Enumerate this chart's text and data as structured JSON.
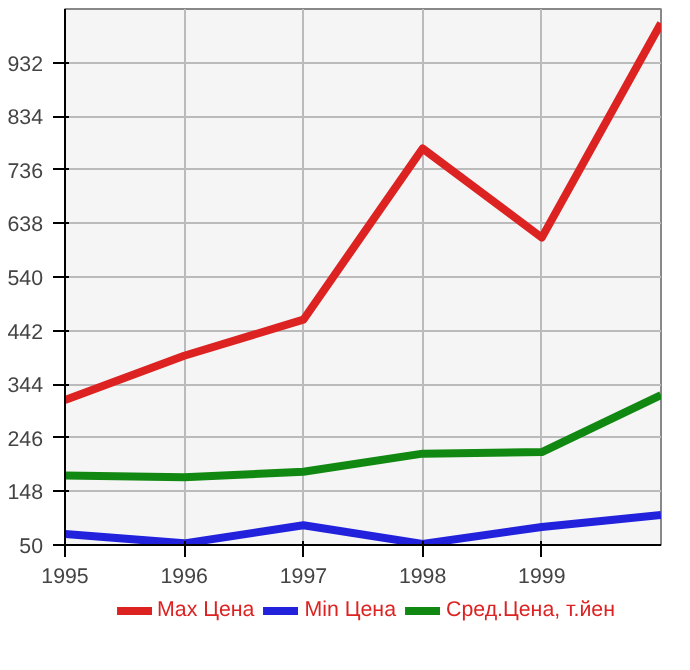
{
  "chart_data": {
    "type": "line",
    "x": [
      1995,
      1996,
      1997,
      1998,
      1999,
      2000
    ],
    "xlim": [
      1995,
      2000
    ],
    "xticks": [
      1995,
      1996,
      1997,
      1998,
      1999
    ],
    "ylim": [
      50,
      1030
    ],
    "yticks": [
      50,
      148,
      246,
      344,
      442,
      540,
      638,
      736,
      834,
      932
    ],
    "series": [
      {
        "name": "Max Цена",
        "color": "#dd2222",
        "values": [
          315,
          396,
          462,
          775,
          612,
          1004
        ]
      },
      {
        "name": "Min Цена",
        "color": "#2222dd",
        "values": [
          70,
          53,
          86,
          52,
          83,
          105
        ]
      },
      {
        "name": "Сред.Цена, т.йен",
        "color": "#118811",
        "values": [
          177,
          174,
          184,
          217,
          220,
          324
        ]
      }
    ],
    "grid": true,
    "legend": "bottom",
    "marker": "none",
    "line_style": "solid"
  }
}
